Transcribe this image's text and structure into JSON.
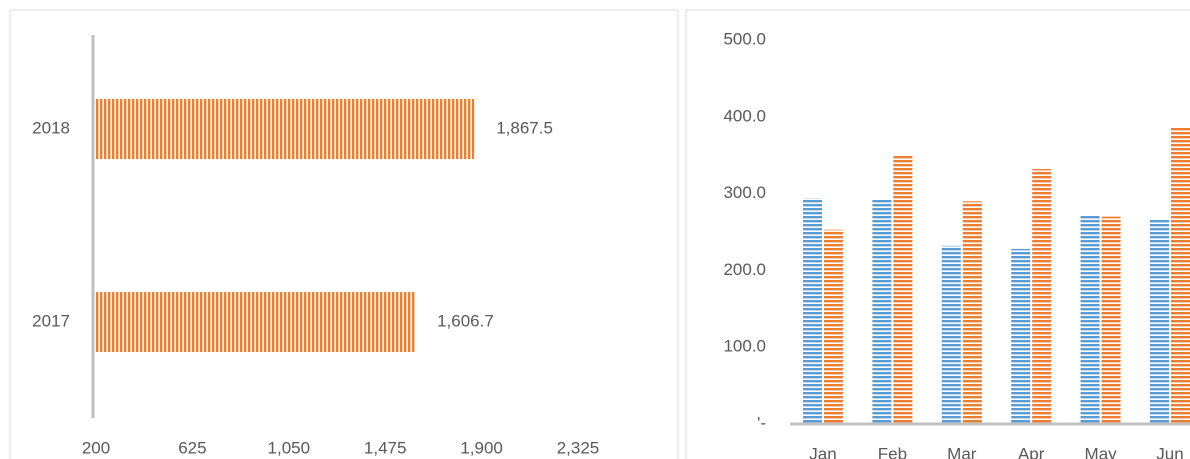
{
  "chart_data": [
    {
      "type": "hbar",
      "categories": [
        "2017",
        "2018"
      ],
      "values": [
        1606.7,
        1867.5
      ],
      "value_labels": [
        "1,606.7",
        "1,867.5"
      ],
      "color": "#ed7d31",
      "xlim": [
        200,
        2325
      ],
      "xticks": [
        200,
        625,
        {
          "value": 1050,
          "label": "1,050"
        },
        {
          "value": 1475,
          "label": "1,475"
        },
        {
          "value": 1900,
          "label": "1,900"
        },
        {
          "value": 2325,
          "label": "2,325"
        }
      ]
    },
    {
      "type": "bar",
      "categories": [
        "Jan",
        "Feb",
        "Mar",
        "Apr",
        "May",
        "Jun"
      ],
      "series": [
        {
          "color": "#5b9bd5",
          "values": [
            294,
            293,
            232,
            228,
            271,
            267
          ]
        },
        {
          "color": "#ed7d31",
          "values": [
            253,
            349,
            290,
            332,
            270,
            387
          ]
        }
      ],
      "ylim": [
        0,
        500
      ],
      "yticks": [
        {
          "value": 0,
          "label": "'-"
        },
        {
          "value": 100,
          "label": "100.0"
        },
        {
          "value": 200,
          "label": "200.0"
        },
        {
          "value": 300,
          "label": "300.0"
        },
        {
          "value": 400,
          "label": "400.0"
        },
        {
          "value": 500,
          "label": "500.0"
        }
      ]
    }
  ]
}
